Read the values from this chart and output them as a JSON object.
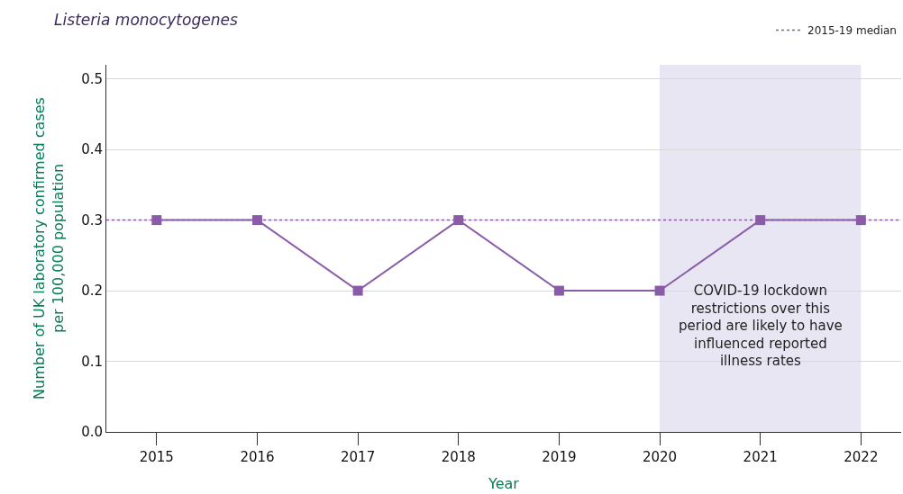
{
  "chart_data": {
    "type": "line",
    "title": "Listeria monocytogenes",
    "xlabel": "Year",
    "ylabel": "Number of UK laboratory confirmed cases\nper 100,000 population",
    "x": [
      2015,
      2016,
      2017,
      2018,
      2019,
      2020,
      2021,
      2022
    ],
    "series": [
      {
        "color": "#8a5ca8",
        "values": [
          0.3,
          0.3,
          0.2,
          0.3,
          0.2,
          0.2,
          0.3,
          0.3
        ]
      }
    ],
    "xlim": [
      2014.5,
      2022.4
    ],
    "xticks": [
      2015,
      2016,
      2017,
      2018,
      2019,
      2020,
      2021,
      2022
    ],
    "ylim": [
      0,
      0.52
    ],
    "yticks": [
      {
        "value": 0,
        "label": "0.0"
      },
      0.1,
      0.2,
      0.3,
      0.4,
      0.5
    ],
    "ref_lines": [
      {
        "axis": "y",
        "value": 0.3,
        "label": "2015-19 median",
        "color": "#8a5ca8",
        "line_style": "dotted"
      }
    ],
    "bands": [
      {
        "axis": "x",
        "from": 2020,
        "to": 2022,
        "label": "COVID-19 lockdown\nrestrictions over this\nperiod are likely to have\ninfluenced reported\nillness rates",
        "color": "#e8e6f3"
      }
    ],
    "grid": "y",
    "legend": "top right",
    "marker": "square",
    "line_style": "solid"
  }
}
